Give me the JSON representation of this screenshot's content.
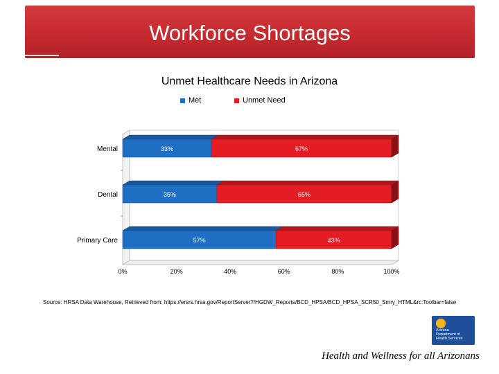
{
  "slide": {
    "title": "Workforce Shortages",
    "footer": "Health and Wellness for all Arizonans",
    "source": "Source: HRSA Data Warehouse, Retrieved from: https://ersrs.hrsa.gov/ReportServer?/HGDW_Reports/BCD_HPSA/BCD_HPSA_SCR50_Smry_HTML&rc:Toolbar=false",
    "logo_text": "Arizona\nDepartment of\nHealth Services"
  },
  "colors": {
    "banner": "#c72a2f",
    "met": "#1f6fc5",
    "unmet": "#e41d24"
  },
  "chart_data": {
    "type": "bar",
    "orientation": "horizontal",
    "stacked": "percent",
    "three_d": true,
    "title": "Unmet Healthcare Needs in Arizona",
    "legend_position": "top",
    "categories": [
      "Mental",
      "Dental",
      "Primary Care"
    ],
    "series": [
      {
        "name": "Met",
        "values": [
          33,
          35,
          57
        ],
        "labels": [
          "33%",
          "35%",
          "57%"
        ],
        "color": "#1f6fc5"
      },
      {
        "name": "Unmet Need",
        "values": [
          67,
          65,
          43
        ],
        "labels": [
          "67%",
          "65%",
          "43%"
        ],
        "color": "#e41d24"
      }
    ],
    "xlim": [
      0,
      100
    ],
    "xticks": [
      "0%",
      "20%",
      "40%",
      "60%",
      "80%",
      "100%"
    ]
  }
}
